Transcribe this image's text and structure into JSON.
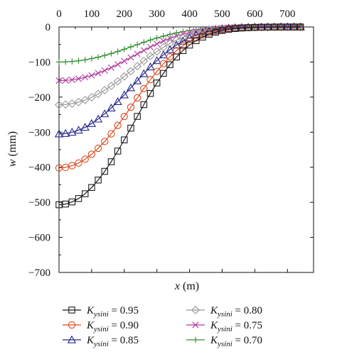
{
  "chart_data": {
    "type": "line",
    "xlabel": "x (m)",
    "ylabel": "w (mm)",
    "xlim": [
      0,
      780
    ],
    "ylim": [
      -700,
      0
    ],
    "x_ticks": [
      0,
      100,
      200,
      300,
      400,
      500,
      600,
      700
    ],
    "y_ticks": [
      0,
      -100,
      -200,
      -300,
      -400,
      -500,
      -600,
      -700
    ],
    "x_tick_labels": [
      "0",
      "100",
      "200",
      "300",
      "400",
      "500",
      "600",
      "700"
    ],
    "y_tick_labels": [
      "0",
      "−100",
      "−200",
      "−300",
      "−400",
      "−500",
      "−600",
      "−700"
    ],
    "x_axis_position": "top",
    "grid": false,
    "legend_position": "bottom",
    "series": [
      {
        "name": "K_ysini = 0.95",
        "legend_label": {
          "symbol": "K",
          "subscript": "ysini",
          "rest": " = 0.95"
        },
        "color": "#1a1a1a",
        "marker": "square",
        "peak": -507
      },
      {
        "name": "K_ysini = 0.90",
        "legend_label": {
          "symbol": "K",
          "subscript": "ysini",
          "rest": " = 0.90"
        },
        "color": "#d94a1e",
        "marker": "circle",
        "peak": -402
      },
      {
        "name": "K_ysini = 0.85",
        "legend_label": {
          "symbol": "K",
          "subscript": "ysini",
          "rest": " = 0.85"
        },
        "color": "#26268c",
        "marker": "triangle",
        "peak": -305
      },
      {
        "name": "K_ysini = 0.80",
        "legend_label": {
          "symbol": "K",
          "subscript": "ysini",
          "rest": " = 0.80"
        },
        "color": "#9a9a9a",
        "marker": "diamond",
        "peak": -222
      },
      {
        "name": "K_ysini = 0.75",
        "legend_label": {
          "symbol": "K",
          "subscript": "ysini",
          "rest": " = 0.75"
        },
        "color": "#b03a9e",
        "marker": "x",
        "peak": -153
      },
      {
        "name": "K_ysini = 0.70",
        "legend_label": {
          "symbol": "K",
          "subscript": "ysini",
          "rest": " = 0.70"
        },
        "color": "#2f8f2f",
        "marker": "plus",
        "peak": -100
      }
    ],
    "x": [
      0,
      20,
      40,
      60,
      80,
      100,
      120,
      140,
      160,
      180,
      200,
      220,
      240,
      260,
      280,
      300,
      320,
      340,
      360,
      380,
      400,
      420,
      440,
      460,
      480,
      500,
      520,
      540,
      560,
      580,
      600,
      620,
      640,
      660,
      680,
      700,
      720,
      740
    ],
    "shape": [
      1.0,
      0.996,
      0.984,
      0.965,
      0.938,
      0.903,
      0.861,
      0.812,
      0.758,
      0.698,
      0.635,
      0.569,
      0.503,
      0.437,
      0.374,
      0.315,
      0.261,
      0.212,
      0.169,
      0.133,
      0.102,
      0.077,
      0.057,
      0.041,
      0.029,
      0.02,
      0.013,
      0.009,
      0.006,
      0.004,
      0.0025,
      0.0015,
      0.001,
      0.0005,
      0.0,
      0.0,
      0.0,
      0.0
    ]
  }
}
